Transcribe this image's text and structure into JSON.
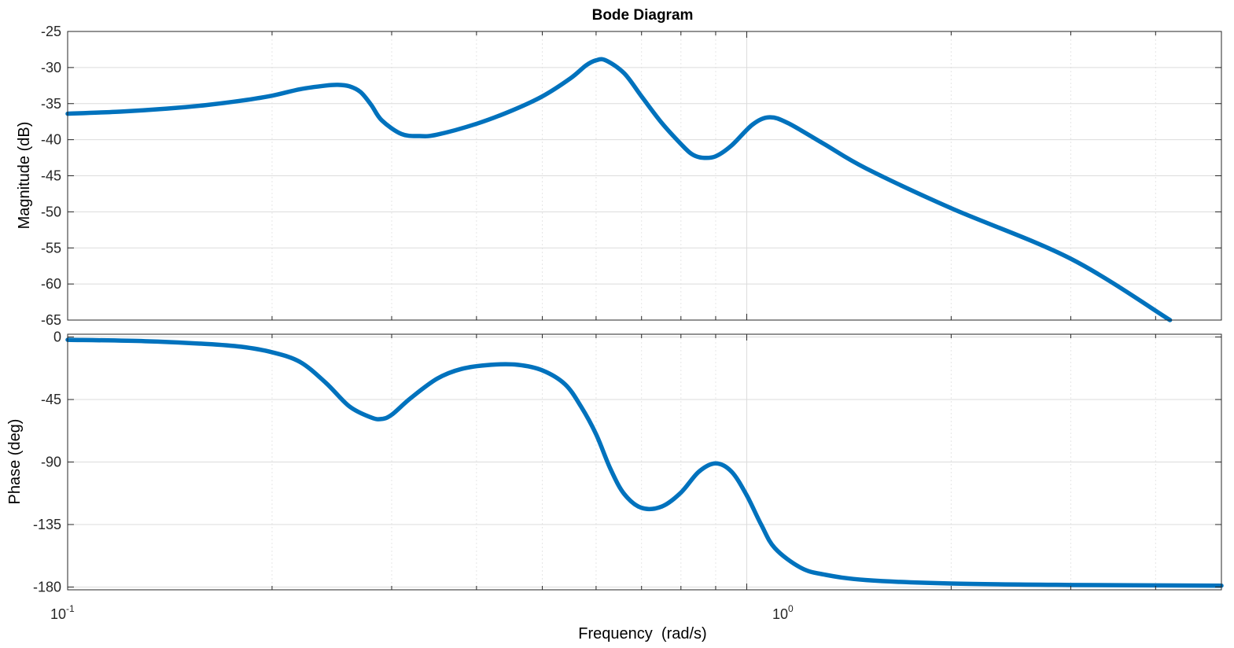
{
  "chart_data": {
    "type": "line",
    "title": "Bode Diagram",
    "xlabel": "Frequency  (rad/s)",
    "x_scale": "log",
    "xlim": [
      0.1,
      5
    ],
    "x_ticks": [
      {
        "base": "10",
        "exp": "-1",
        "value": 0.1
      },
      {
        "base": "10",
        "exp": "0",
        "value": 1
      }
    ],
    "grid": true,
    "line_color": "#0072BD",
    "panels": [
      {
        "name": "magnitude",
        "ylabel": "Magnitude (dB)",
        "ylim": [
          -65,
          -25
        ],
        "yticks": [
          "-25",
          "-30",
          "-35",
          "-40",
          "-45",
          "-50",
          "-55",
          "-60",
          "-65"
        ],
        "ytick_values": [
          -25,
          -30,
          -35,
          -40,
          -45,
          -50,
          -55,
          -60,
          -65
        ],
        "series": [
          {
            "x": [
              0.1,
              0.12,
              0.14,
              0.16,
              0.18,
              0.2,
              0.22,
              0.24,
              0.25,
              0.26,
              0.27,
              0.28,
              0.29,
              0.31,
              0.33,
              0.35,
              0.4,
              0.45,
              0.5,
              0.55,
              0.58,
              0.6,
              0.62,
              0.66,
              0.7,
              0.75,
              0.8,
              0.83,
              0.86,
              0.9,
              0.95,
              1.02,
              1.08,
              1.15,
              1.3,
              1.5,
              2.0,
              3.0,
              4.2
            ],
            "y": [
              -36.4,
              -36.1,
              -35.7,
              -35.2,
              -34.6,
              -33.9,
              -33.0,
              -32.5,
              -32.4,
              -32.6,
              -33.4,
              -35.2,
              -37.3,
              -39.2,
              -39.5,
              -39.3,
              -37.8,
              -36.0,
              -34.0,
              -31.5,
              -29.7,
              -29.0,
              -29.0,
              -30.8,
              -34.0,
              -37.7,
              -40.6,
              -42.0,
              -42.5,
              -42.3,
              -40.8,
              -37.9,
              -36.9,
              -37.7,
              -40.6,
              -44.0,
              -49.5,
              -56.5,
              -65.0
            ]
          }
        ]
      },
      {
        "name": "phase",
        "ylabel": "Phase (deg)",
        "ylim": [
          -182,
          2
        ],
        "yticks": [
          "0",
          "-45",
          "-90",
          "-135",
          "-180"
        ],
        "ytick_values": [
          0,
          -45,
          -90,
          -135,
          -180
        ],
        "series": [
          {
            "x": [
              0.1,
              0.13,
              0.16,
              0.18,
              0.2,
              0.22,
              0.24,
              0.26,
              0.28,
              0.29,
              0.3,
              0.32,
              0.35,
              0.38,
              0.42,
              0.46,
              0.5,
              0.54,
              0.57,
              0.6,
              0.63,
              0.66,
              0.7,
              0.75,
              0.8,
              0.85,
              0.9,
              0.95,
              1.0,
              1.05,
              1.1,
              1.2,
              1.3,
              1.5,
              2.0,
              3.0,
              5.0
            ],
            "y": [
              -2.0,
              -3.0,
              -5.0,
              -7.0,
              -11.0,
              -18.0,
              -33.0,
              -50.0,
              -58.0,
              -59.0,
              -56.0,
              -44.0,
              -30.0,
              -23.0,
              -20.0,
              -20.0,
              -24.0,
              -34.0,
              -50.0,
              -70.0,
              -95.0,
              -113.0,
              -123.0,
              -122.0,
              -112.0,
              -97.0,
              -91.0,
              -97.0,
              -114.0,
              -135.0,
              -152.0,
              -166.0,
              -171.0,
              -175.0,
              -177.5,
              -178.5,
              -179.0
            ]
          }
        ]
      }
    ]
  }
}
